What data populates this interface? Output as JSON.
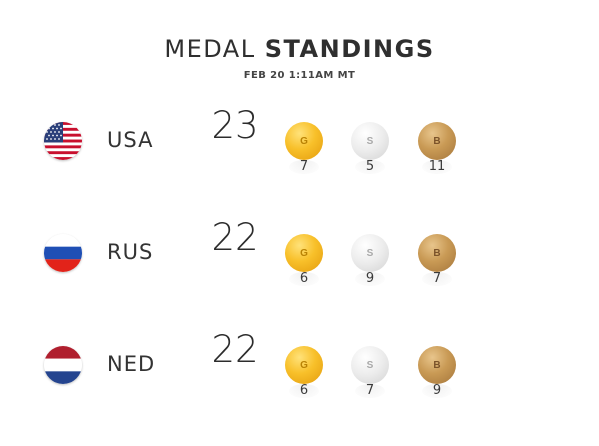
{
  "header": {
    "title_light": "MEDAL",
    "title_bold": "STANDINGS",
    "timestamp": "FEB 20 1:11AM MT"
  },
  "medal_letters": {
    "gold": "G",
    "silver": "S",
    "bronze": "B"
  },
  "colors": {
    "gold": "#f8c02a",
    "silver": "#e6e6e6",
    "bronze": "#c99a55",
    "text": "#333333"
  },
  "rows": [
    {
      "country": "USA",
      "total": "23",
      "gold": "7",
      "silver": "5",
      "bronze": "11",
      "flag_icon": "usa-flag-icon"
    },
    {
      "country": "RUS",
      "total": "22",
      "gold": "6",
      "silver": "9",
      "bronze": "7",
      "flag_icon": "russia-flag-icon"
    },
    {
      "country": "NED",
      "total": "22",
      "gold": "6",
      "silver": "7",
      "bronze": "9",
      "flag_icon": "netherlands-flag-icon"
    }
  ]
}
